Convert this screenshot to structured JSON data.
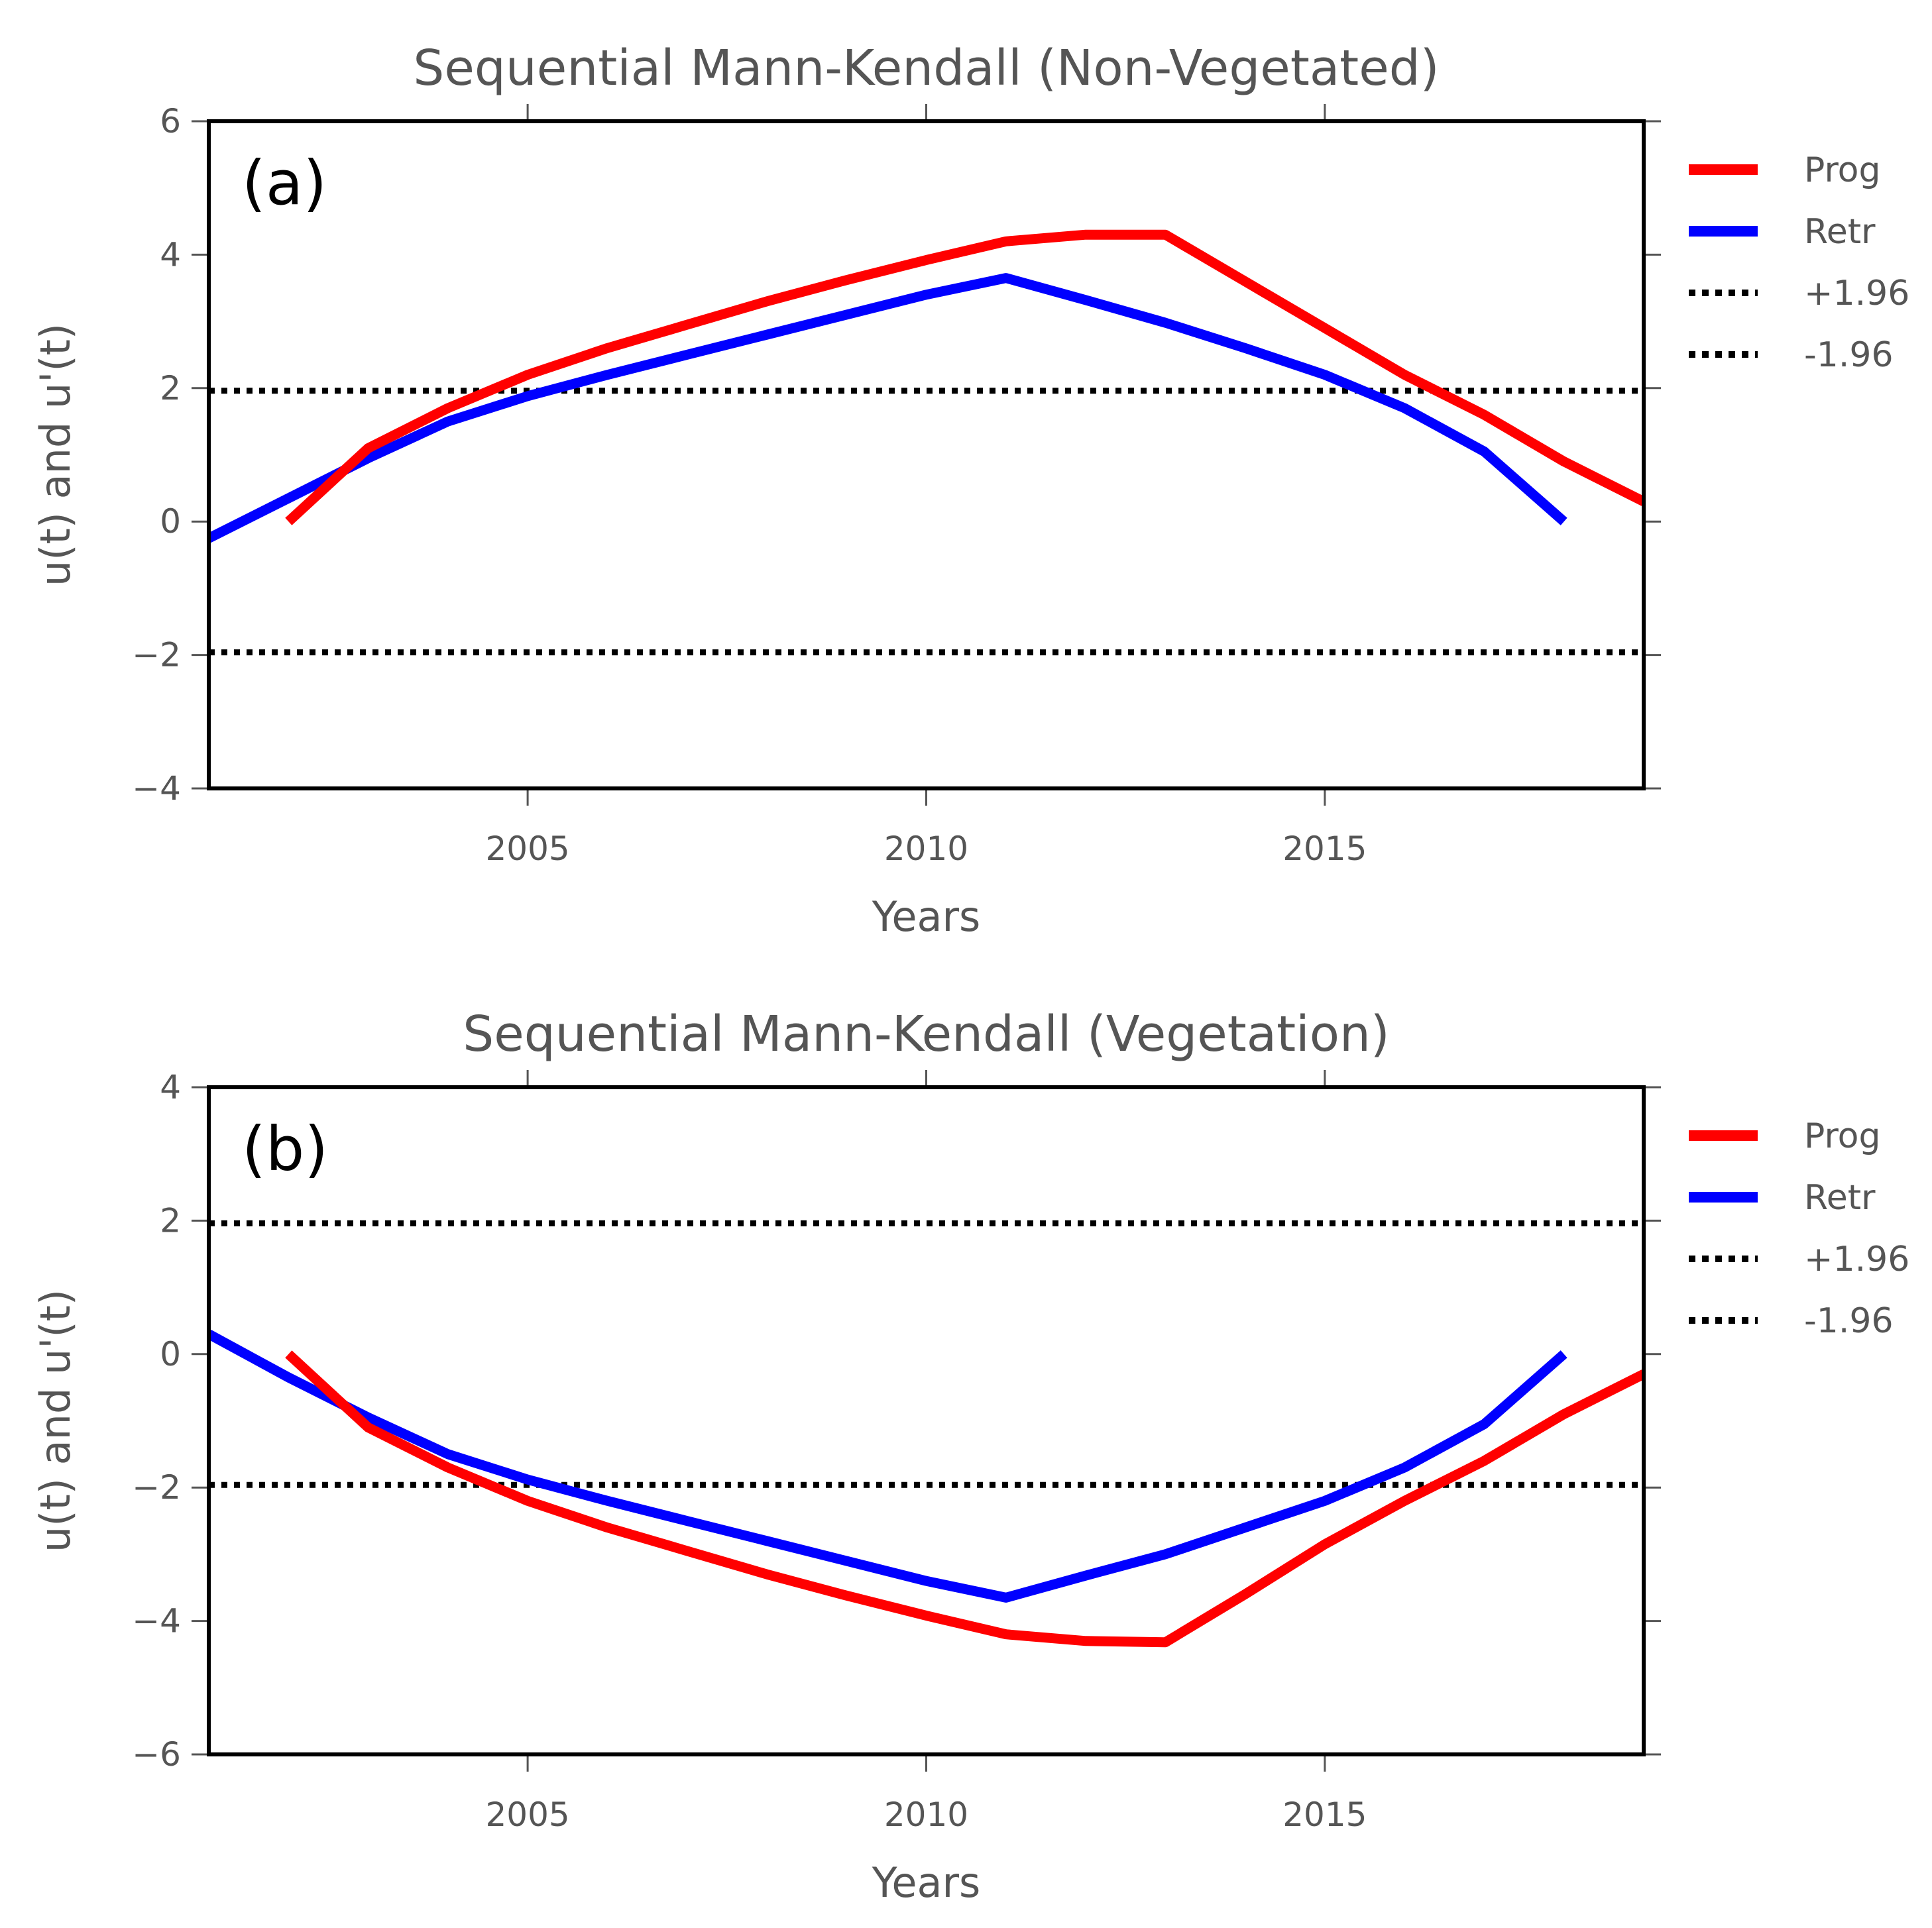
{
  "chart_data": [
    {
      "type": "line",
      "title": "Sequential Mann-Kendall (Non-Vegetated)",
      "panel_label": "(a)",
      "xlabel": "Years",
      "ylabel": "u(t) and u'(t)",
      "xlim": [
        2001,
        2019
      ],
      "ylim": [
        -4,
        6
      ],
      "xticks": [
        2005,
        2010,
        2015
      ],
      "xtick_labels": [
        "2005",
        "2010",
        "2015"
      ],
      "yticks": [
        -4,
        -2,
        0,
        2,
        4,
        6
      ],
      "ytick_labels": [
        "−4",
        "−2",
        "0",
        "2",
        "4",
        "6"
      ],
      "legend_position": "right",
      "series": [
        {
          "name": "Prog",
          "color": "#ff0000",
          "style": "solid",
          "x": [
            2002,
            2003,
            2004,
            2005,
            2006,
            2007,
            2008,
            2009,
            2010,
            2011,
            2012,
            2013,
            2014,
            2015,
            2016,
            2017,
            2018,
            2019
          ],
          "y": [
            0.0,
            1.1,
            1.7,
            2.2,
            2.6,
            2.95,
            3.3,
            3.62,
            3.92,
            4.2,
            4.3,
            4.3,
            3.6,
            2.9,
            2.2,
            1.6,
            0.9,
            0.3
          ]
        },
        {
          "name": "Retr",
          "color": "#0000ff",
          "style": "solid",
          "x": [
            2001,
            2002,
            2003,
            2004,
            2005,
            2006,
            2007,
            2008,
            2009,
            2010,
            2011,
            2012,
            2013,
            2014,
            2015,
            2016,
            2017,
            2018
          ],
          "y": [
            -0.25,
            0.35,
            0.95,
            1.5,
            1.88,
            2.2,
            2.5,
            2.8,
            3.1,
            3.4,
            3.65,
            3.32,
            2.98,
            2.6,
            2.2,
            1.7,
            1.05,
            0.0
          ]
        },
        {
          "name": "+1.96",
          "color": "#000000",
          "style": "dotted",
          "x": [
            2001,
            2019
          ],
          "y": [
            1.96,
            1.96
          ]
        },
        {
          "name": "-1.96",
          "color": "#000000",
          "style": "dotted",
          "x": [
            2001,
            2019
          ],
          "y": [
            -1.96,
            -1.96
          ]
        }
      ]
    },
    {
      "type": "line",
      "title": "Sequential Mann-Kendall (Vegetation)",
      "panel_label": "(b)",
      "xlabel": "Years",
      "ylabel": "u(t) and u'(t)",
      "xlim": [
        2001,
        2019
      ],
      "ylim": [
        -6,
        4
      ],
      "xticks": [
        2005,
        2010,
        2015
      ],
      "xtick_labels": [
        "2005",
        "2010",
        "2015"
      ],
      "yticks": [
        -6,
        -4,
        -2,
        0,
        2,
        4
      ],
      "ytick_labels": [
        "−6",
        "−4",
        "−2",
        "0",
        "2",
        "4"
      ],
      "legend_position": "right",
      "series": [
        {
          "name": "Prog",
          "color": "#ff0000",
          "style": "solid",
          "x": [
            2002,
            2003,
            2004,
            2005,
            2006,
            2007,
            2008,
            2009,
            2010,
            2011,
            2012,
            2013,
            2014,
            2015,
            2016,
            2017,
            2018,
            2019
          ],
          "y": [
            0.0,
            -1.1,
            -1.7,
            -2.2,
            -2.6,
            -2.95,
            -3.3,
            -3.62,
            -3.92,
            -4.2,
            -4.3,
            -4.32,
            -3.6,
            -2.85,
            -2.2,
            -1.6,
            -0.9,
            -0.3
          ]
        },
        {
          "name": "Retr",
          "color": "#0000ff",
          "style": "solid",
          "x": [
            2001,
            2002,
            2003,
            2004,
            2005,
            2006,
            2007,
            2008,
            2009,
            2010,
            2011,
            2012,
            2013,
            2014,
            2015,
            2016,
            2017,
            2018
          ],
          "y": [
            0.3,
            -0.35,
            -0.95,
            -1.5,
            -1.88,
            -2.2,
            -2.5,
            -2.8,
            -3.1,
            -3.4,
            -3.65,
            -3.32,
            -3.0,
            -2.6,
            -2.2,
            -1.7,
            -1.05,
            0.0
          ]
        },
        {
          "name": "+1.96",
          "color": "#000000",
          "style": "dotted",
          "x": [
            2001,
            2019
          ],
          "y": [
            1.96,
            1.96
          ]
        },
        {
          "name": "-1.96",
          "color": "#000000",
          "style": "dotted",
          "x": [
            2001,
            2019
          ],
          "y": [
            -1.96,
            -1.96
          ]
        }
      ]
    }
  ]
}
